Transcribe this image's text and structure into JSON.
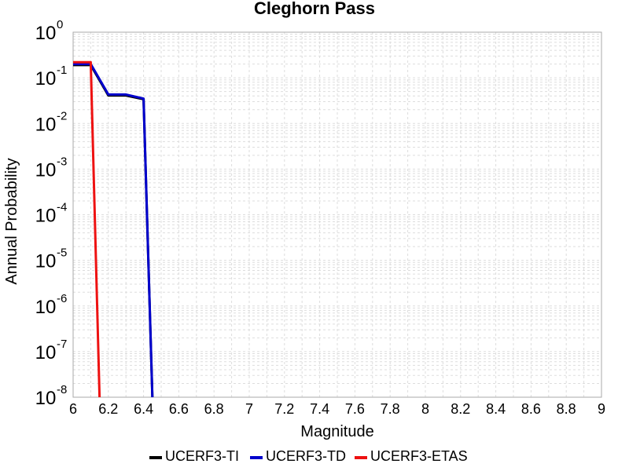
{
  "chart_data": {
    "type": "line",
    "title": "Cleghorn Pass",
    "xlabel": "Magnitude",
    "ylabel": "Annual Probability",
    "xlim": [
      6,
      9
    ],
    "ylim": [
      1e-08,
      1
    ],
    "yscale": "log",
    "grid": true,
    "legend_position": "bottom",
    "x_ticks": [
      "6",
      "6.2",
      "6.4",
      "6.6",
      "6.8",
      "7",
      "7.2",
      "7.4",
      "7.6",
      "7.8",
      "8",
      "8.2",
      "8.4",
      "8.6",
      "8.8",
      "9"
    ],
    "y_ticks": [
      {
        "base": "10",
        "exp": "0"
      },
      {
        "base": "10",
        "exp": "-1"
      },
      {
        "base": "10",
        "exp": "-2"
      },
      {
        "base": "10",
        "exp": "-3"
      },
      {
        "base": "10",
        "exp": "-4"
      },
      {
        "base": "10",
        "exp": "-5"
      },
      {
        "base": "10",
        "exp": "-6"
      },
      {
        "base": "10",
        "exp": "-7"
      },
      {
        "base": "10",
        "exp": "-8"
      }
    ],
    "series": [
      {
        "name": "UCERF3-TI",
        "color": "#000000",
        "x": [
          6.0,
          6.1,
          6.2,
          6.3,
          6.4,
          6.45
        ],
        "y": [
          0.19,
          0.19,
          0.041,
          0.041,
          0.034,
          1e-08
        ]
      },
      {
        "name": "UCERF3-TD",
        "color": "#0000cc",
        "x": [
          6.0,
          6.1,
          6.2,
          6.3,
          6.4,
          6.45
        ],
        "y": [
          0.2,
          0.2,
          0.043,
          0.043,
          0.035,
          1e-08
        ]
      },
      {
        "name": "UCERF3-ETAS",
        "color": "#ee1111",
        "x": [
          6.0,
          6.1,
          6.15
        ],
        "y": [
          0.22,
          0.22,
          1e-08
        ]
      }
    ]
  }
}
